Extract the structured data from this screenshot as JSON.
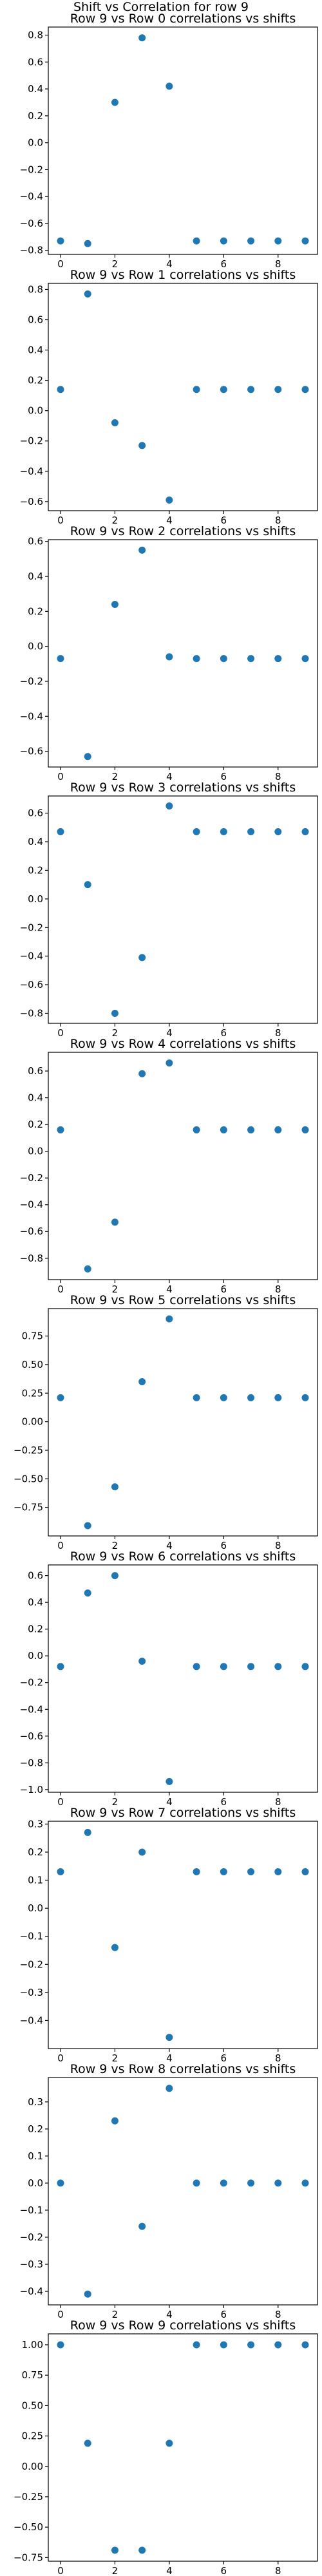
{
  "figure": {
    "suptitle": "Shift vs Correlation for row 9"
  },
  "style": {
    "marker_color": "#1f77b4",
    "axis_color": "#000000",
    "background": "#ffffff"
  },
  "chart_data": [
    {
      "type": "scatter",
      "title": "Row 9 vs Row 0 correlations vs shifts",
      "xlabel": "",
      "ylabel": "",
      "x": [
        0,
        1,
        2,
        3,
        4,
        5,
        6,
        7,
        8,
        9
      ],
      "values": [
        -0.73,
        -0.75,
        0.3,
        0.78,
        0.42,
        -0.73,
        -0.73,
        -0.73,
        -0.73,
        -0.73
      ],
      "xlim": [
        -0.45,
        9.45
      ],
      "ylim": [
        -0.83,
        0.86
      ],
      "xticks": [
        0,
        2,
        4,
        6,
        8
      ],
      "yticks": [
        -0.8,
        -0.6,
        -0.4,
        -0.2,
        0.0,
        0.2,
        0.4,
        0.6,
        0.8
      ],
      "ytick_labels": [
        "−0.8",
        "−0.6",
        "−0.4",
        "−0.2",
        "0.0",
        "0.2",
        "0.4",
        "0.6",
        "0.8"
      ],
      "grid": false,
      "legend": "none"
    },
    {
      "type": "scatter",
      "title": "Row 9 vs Row 1 correlations vs shifts",
      "xlabel": "",
      "ylabel": "",
      "x": [
        0,
        1,
        2,
        3,
        4,
        5,
        6,
        7,
        8,
        9
      ],
      "values": [
        0.14,
        0.77,
        -0.08,
        -0.23,
        -0.59,
        0.14,
        0.14,
        0.14,
        0.14,
        0.14
      ],
      "xlim": [
        -0.45,
        9.45
      ],
      "ylim": [
        -0.66,
        0.84
      ],
      "xticks": [
        0,
        2,
        4,
        6,
        8
      ],
      "yticks": [
        -0.6,
        -0.4,
        -0.2,
        0.0,
        0.2,
        0.4,
        0.6,
        0.8
      ],
      "ytick_labels": [
        "−0.6",
        "−0.4",
        "−0.2",
        "0.0",
        "0.2",
        "0.4",
        "0.6",
        "0.8"
      ],
      "grid": false,
      "legend": "none"
    },
    {
      "type": "scatter",
      "title": "Row 9 vs Row 2 correlations vs shifts",
      "xlabel": "",
      "ylabel": "",
      "x": [
        0,
        1,
        2,
        3,
        4,
        5,
        6,
        7,
        8,
        9
      ],
      "values": [
        -0.07,
        -0.63,
        0.24,
        0.55,
        -0.06,
        -0.07,
        -0.07,
        -0.07,
        -0.07,
        -0.07
      ],
      "xlim": [
        -0.45,
        9.45
      ],
      "ylim": [
        -0.69,
        0.61
      ],
      "xticks": [
        0,
        2,
        4,
        6,
        8
      ],
      "yticks": [
        -0.6,
        -0.4,
        -0.2,
        0.0,
        0.2,
        0.4,
        0.6
      ],
      "ytick_labels": [
        "−0.6",
        "−0.4",
        "−0.2",
        "0.0",
        "0.2",
        "0.4",
        "0.6"
      ],
      "grid": false,
      "legend": "none"
    },
    {
      "type": "scatter",
      "title": "Row 9 vs Row 3 correlations vs shifts",
      "xlabel": "",
      "ylabel": "",
      "x": [
        0,
        1,
        2,
        3,
        4,
        5,
        6,
        7,
        8,
        9
      ],
      "values": [
        0.47,
        0.1,
        -0.8,
        -0.41,
        0.65,
        0.47,
        0.47,
        0.47,
        0.47,
        0.47
      ],
      "xlim": [
        -0.45,
        9.45
      ],
      "ylim": [
        -0.87,
        0.72
      ],
      "xticks": [
        0,
        2,
        4,
        6,
        8
      ],
      "yticks": [
        -0.8,
        -0.6,
        -0.4,
        -0.2,
        0.0,
        0.2,
        0.4,
        0.6
      ],
      "ytick_labels": [
        "−0.8",
        "−0.6",
        "−0.4",
        "−0.2",
        "0.0",
        "0.2",
        "0.4",
        "0.6"
      ],
      "grid": false,
      "legend": "none"
    },
    {
      "type": "scatter",
      "title": "Row 9 vs Row 4 correlations vs shifts",
      "xlabel": "",
      "ylabel": "",
      "x": [
        0,
        1,
        2,
        3,
        4,
        5,
        6,
        7,
        8,
        9
      ],
      "values": [
        0.16,
        -0.88,
        -0.53,
        0.58,
        0.66,
        0.16,
        0.16,
        0.16,
        0.16,
        0.16
      ],
      "xlim": [
        -0.45,
        9.45
      ],
      "ylim": [
        -0.96,
        0.74
      ],
      "xticks": [
        0,
        2,
        4,
        6,
        8
      ],
      "yticks": [
        -0.8,
        -0.6,
        -0.4,
        -0.2,
        0.0,
        0.2,
        0.4,
        0.6
      ],
      "ytick_labels": [
        "−0.8",
        "−0.6",
        "−0.4",
        "−0.2",
        "0.0",
        "0.2",
        "0.4",
        "0.6"
      ],
      "grid": false,
      "legend": "none"
    },
    {
      "type": "scatter",
      "title": "Row 9 vs Row 5 correlations vs shifts",
      "xlabel": "",
      "ylabel": "",
      "x": [
        0,
        1,
        2,
        3,
        4,
        5,
        6,
        7,
        8,
        9
      ],
      "values": [
        0.21,
        -0.91,
        -0.57,
        0.35,
        0.9,
        0.21,
        0.21,
        0.21,
        0.21,
        0.21
      ],
      "xlim": [
        -0.45,
        9.45
      ],
      "ylim": [
        -1.0,
        0.99
      ],
      "xticks": [
        0,
        2,
        4,
        6,
        8
      ],
      "yticks": [
        -0.75,
        -0.5,
        -0.25,
        0.0,
        0.25,
        0.5,
        0.75
      ],
      "ytick_labels": [
        "−0.75",
        "−0.50",
        "−0.25",
        "0.00",
        "0.25",
        "0.50",
        "0.75"
      ],
      "grid": false,
      "legend": "none"
    },
    {
      "type": "scatter",
      "title": "Row 9 vs Row 6 correlations vs shifts",
      "xlabel": "",
      "ylabel": "",
      "x": [
        0,
        1,
        2,
        3,
        4,
        5,
        6,
        7,
        8,
        9
      ],
      "values": [
        -0.08,
        0.47,
        0.6,
        -0.04,
        -0.94,
        -0.08,
        -0.08,
        -0.08,
        -0.08,
        -0.08
      ],
      "xlim": [
        -0.45,
        9.45
      ],
      "ylim": [
        -1.02,
        0.68
      ],
      "xticks": [
        0,
        2,
        4,
        6,
        8
      ],
      "yticks": [
        -1.0,
        -0.8,
        -0.6,
        -0.4,
        -0.2,
        0.0,
        0.2,
        0.4,
        0.6
      ],
      "ytick_labels": [
        "−1.0",
        "−0.8",
        "−0.6",
        "−0.4",
        "−0.2",
        "0.0",
        "0.2",
        "0.4",
        "0.6"
      ],
      "grid": false,
      "legend": "none"
    },
    {
      "type": "scatter",
      "title": "Row 9 vs Row 7 correlations vs shifts",
      "xlabel": "",
      "ylabel": "",
      "x": [
        0,
        1,
        2,
        3,
        4,
        5,
        6,
        7,
        8,
        9
      ],
      "values": [
        0.13,
        0.27,
        -0.14,
        0.2,
        -0.46,
        0.13,
        0.13,
        0.13,
        0.13,
        0.13
      ],
      "xlim": [
        -0.45,
        9.45
      ],
      "ylim": [
        -0.5,
        0.31
      ],
      "xticks": [
        0,
        2,
        4,
        6,
        8
      ],
      "yticks": [
        -0.4,
        -0.3,
        -0.2,
        -0.1,
        0.0,
        0.1,
        0.2,
        0.3
      ],
      "ytick_labels": [
        "−0.4",
        "−0.3",
        "−0.2",
        "−0.1",
        "0.0",
        "0.1",
        "0.2",
        "0.3"
      ],
      "grid": false,
      "legend": "none"
    },
    {
      "type": "scatter",
      "title": "Row 9 vs Row 8 correlations vs shifts",
      "xlabel": "",
      "ylabel": "",
      "x": [
        0,
        1,
        2,
        3,
        4,
        5,
        6,
        7,
        8,
        9
      ],
      "values": [
        0.0,
        -0.41,
        0.23,
        -0.16,
        0.35,
        0.0,
        0.0,
        0.0,
        0.0,
        0.0
      ],
      "xlim": [
        -0.45,
        9.45
      ],
      "ylim": [
        -0.45,
        0.39
      ],
      "xticks": [
        0,
        2,
        4,
        6,
        8
      ],
      "yticks": [
        -0.4,
        -0.3,
        -0.2,
        -0.1,
        0.0,
        0.1,
        0.2,
        0.3
      ],
      "ytick_labels": [
        "−0.4",
        "−0.3",
        "−0.2",
        "−0.1",
        "0.0",
        "0.1",
        "0.2",
        "0.3"
      ],
      "grid": false,
      "legend": "none"
    },
    {
      "type": "scatter",
      "title": "Row 9 vs Row 9 correlations vs shifts",
      "xlabel": "",
      "ylabel": "",
      "x": [
        0,
        1,
        2,
        3,
        4,
        5,
        6,
        7,
        8,
        9
      ],
      "values": [
        1.0,
        0.19,
        -0.69,
        -0.69,
        0.19,
        1.0,
        1.0,
        1.0,
        1.0,
        1.0
      ],
      "xlim": [
        -0.45,
        9.45
      ],
      "ylim": [
        -0.78,
        1.09
      ],
      "xticks": [
        0,
        2,
        4,
        6,
        8
      ],
      "yticks": [
        -0.75,
        -0.5,
        -0.25,
        0.0,
        0.25,
        0.5,
        0.75,
        1.0
      ],
      "ytick_labels": [
        "−0.75",
        "−0.50",
        "−0.25",
        "0.00",
        "0.25",
        "0.50",
        "0.75",
        "1.00"
      ],
      "grid": false,
      "legend": "none"
    }
  ]
}
